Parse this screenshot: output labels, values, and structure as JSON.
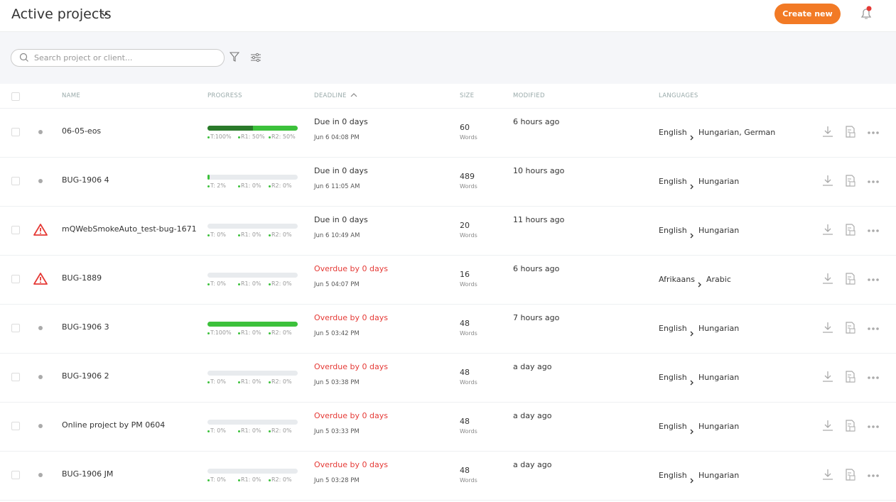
{
  "header": {
    "title": "Active projects",
    "create_button": "Create new"
  },
  "search": {
    "placeholder": "Search project or client..."
  },
  "table": {
    "columns": [
      "NAME",
      "PROGRESS",
      "DEADLINE",
      "SIZE",
      "MODIFIED",
      "LANGUAGES"
    ],
    "rows": [
      {
        "status": "dot",
        "name": "06-05-eos",
        "progress": {
          "values": [
            100,
            50,
            50
          ],
          "value_labels": [
            "T:100%",
            "R1: 50%",
            "R2: 50%"
          ]
        },
        "deadline": "Due in 0 days",
        "overdue": false,
        "date": "Jun 6 04:08 PM",
        "size": "60",
        "size_unit": "Words",
        "modified": "6 hours ago",
        "source": "English",
        "target": "Hungarian, German"
      },
      {
        "status": "dot",
        "name": "BUG-1906 4",
        "progress": {
          "values": [
            2,
            0,
            0
          ],
          "value_labels": [
            "T: 2%",
            "R1: 0%",
            "R2: 0%"
          ]
        },
        "deadline": "Due in 0 days",
        "overdue": false,
        "date": "Jun 6 11:05 AM",
        "size": "489",
        "size_unit": "Words",
        "modified": "10 hours ago",
        "source": "English",
        "target": "Hungarian"
      },
      {
        "status": "warning",
        "name": "mQWebSmokeAuto_test-bug-1671",
        "progress": {
          "values": [
            0,
            0,
            0
          ],
          "value_labels": [
            "T: 0%",
            "R1: 0%",
            "R2: 0%"
          ]
        },
        "deadline": "Due in 0 days",
        "overdue": false,
        "date": "Jun 6 10:49 AM",
        "size": "20",
        "size_unit": "Words",
        "modified": "11 hours ago",
        "source": "English",
        "target": "Hungarian"
      },
      {
        "status": "warning",
        "name": "BUG-1889",
        "progress": {
          "values": [
            0,
            0,
            0
          ],
          "value_labels": [
            "T: 0%",
            "R1: 0%",
            "R2: 0%"
          ]
        },
        "deadline": "Overdue by 0 days",
        "overdue": true,
        "date": "Jun 5 04:07 PM",
        "size": "16",
        "size_unit": "Words",
        "modified": "6 hours ago",
        "source": "Afrikaans",
        "target": "Arabic"
      },
      {
        "status": "dot",
        "name": "BUG-1906 3",
        "progress": {
          "values": [
            100,
            0,
            0
          ],
          "value_labels": [
            "T:100%",
            "R1: 0%",
            "R2: 0%"
          ]
        },
        "deadline": "Overdue by 0 days",
        "overdue": true,
        "date": "Jun 5 03:42 PM",
        "size": "48",
        "size_unit": "Words",
        "modified": "7 hours ago",
        "source": "English",
        "target": "Hungarian"
      },
      {
        "status": "dot",
        "name": "BUG-1906 2",
        "progress": {
          "values": [
            0,
            0,
            0
          ],
          "value_labels": [
            "T: 0%",
            "R1: 0%",
            "R2: 0%"
          ]
        },
        "deadline": "Overdue by 0 days",
        "overdue": true,
        "date": "Jun 5 03:38 PM",
        "size": "48",
        "size_unit": "Words",
        "modified": "a day ago",
        "source": "English",
        "target": "Hungarian"
      },
      {
        "status": "dot",
        "name": "Online project by PM 0604",
        "progress": {
          "values": [
            0,
            0,
            0
          ],
          "value_labels": [
            "T: 0%",
            "R1: 0%",
            "R2: 0%"
          ]
        },
        "deadline": "Overdue by 0 days",
        "overdue": true,
        "date": "Jun 5 03:33 PM",
        "size": "48",
        "size_unit": "Words",
        "modified": "a day ago",
        "source": "English",
        "target": "Hungarian"
      },
      {
        "status": "dot",
        "name": "BUG-1906 JM",
        "progress": {
          "values": [
            0,
            0,
            0
          ],
          "value_labels": [
            "T: 0%",
            "R1: 0%",
            "R2: 0%"
          ]
        },
        "deadline": "Overdue by 0 days",
        "overdue": true,
        "date": "Jun 5 03:28 PM",
        "size": "48",
        "size_unit": "Words",
        "modified": "a day ago",
        "source": "English",
        "target": "Hungarian"
      }
    ]
  }
}
